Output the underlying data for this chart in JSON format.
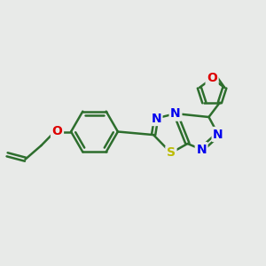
{
  "bg_color": "#e8eae8",
  "bond_color": "#2d6e2d",
  "N_color": "#0000ee",
  "S_color": "#bbbb00",
  "O_color": "#dd0000",
  "bond_width": 1.8,
  "font_size": 10
}
